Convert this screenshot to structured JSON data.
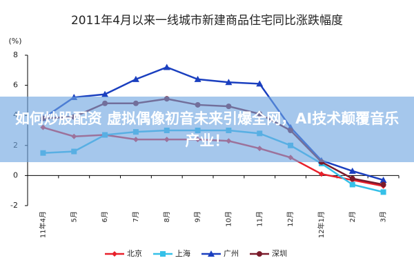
{
  "chart_data": {
    "type": "line",
    "title": "2011年4月以来一线城市新建商品住宅同比涨跌幅度",
    "y_label": "(%)",
    "categories": [
      "11年4月",
      "5月",
      "6月",
      "7月",
      "8月",
      "9月",
      "10月",
      "11月",
      "12月",
      "12年1月",
      "2月",
      "3月"
    ],
    "series": [
      {
        "name": "北京",
        "color": "#e8202a",
        "marker": "diamond",
        "values": [
          3.2,
          2.6,
          2.7,
          2.4,
          2.4,
          2.4,
          2.3,
          1.8,
          1.2,
          0.1,
          -0.3,
          -0.7
        ]
      },
      {
        "name": "上海",
        "color": "#35c0e8",
        "marker": "square",
        "values": [
          1.5,
          1.6,
          2.7,
          2.9,
          3.0,
          3.0,
          3.0,
          2.8,
          2.0,
          0.8,
          -0.6,
          -1.1
        ]
      },
      {
        "name": "广州",
        "color": "#1a3fbf",
        "marker": "triangle",
        "values": [
          3.8,
          5.2,
          5.4,
          6.4,
          7.2,
          6.4,
          6.2,
          6.1,
          3.2,
          1.0,
          0.3,
          -0.3
        ]
      },
      {
        "name": "深圳",
        "color": "#7a1a2a",
        "marker": "circle",
        "values": [
          3.8,
          3.9,
          4.8,
          4.8,
          5.1,
          4.7,
          4.6,
          4.1,
          3.0,
          0.9,
          -0.2,
          -0.6
        ]
      }
    ],
    "ylim": [
      -2,
      8
    ],
    "yticks": [
      -2,
      0,
      2,
      4,
      6,
      8
    ],
    "grid": false,
    "legend": "bottom"
  },
  "banner": {
    "text": "如何炒股配资 虚拟偶像初音未来引爆全网，AI技术颠覆音乐产业！"
  }
}
